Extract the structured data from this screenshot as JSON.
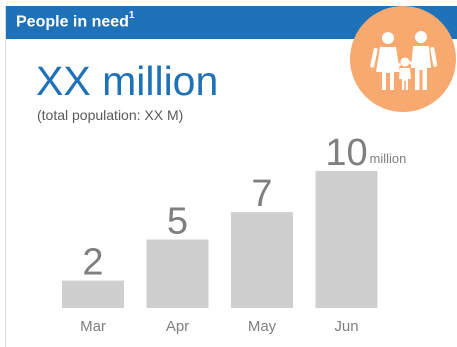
{
  "header": {
    "title": "People in need",
    "footnote": "1"
  },
  "icon": {
    "name": "family-icon",
    "circle_color": "#f7a96f"
  },
  "headline": {
    "value": "XX million",
    "subtitle": "(total population: XX M)"
  },
  "colors": {
    "header_bg": "#1f71b8",
    "headline": "#1f71b8",
    "bar": "#cfcfcf",
    "bar_label": "#7f7f7f",
    "axis_label": "#7f7f7f"
  },
  "chart_data": {
    "type": "bar",
    "categories": [
      "Mar",
      "Apr",
      "May",
      "Jun"
    ],
    "values": [
      2,
      5,
      7,
      10
    ],
    "value_labels": [
      "2",
      "5",
      "7",
      "10"
    ],
    "unit_label": "million",
    "ylim": [
      0,
      10
    ],
    "grid": false,
    "legend": "none"
  }
}
